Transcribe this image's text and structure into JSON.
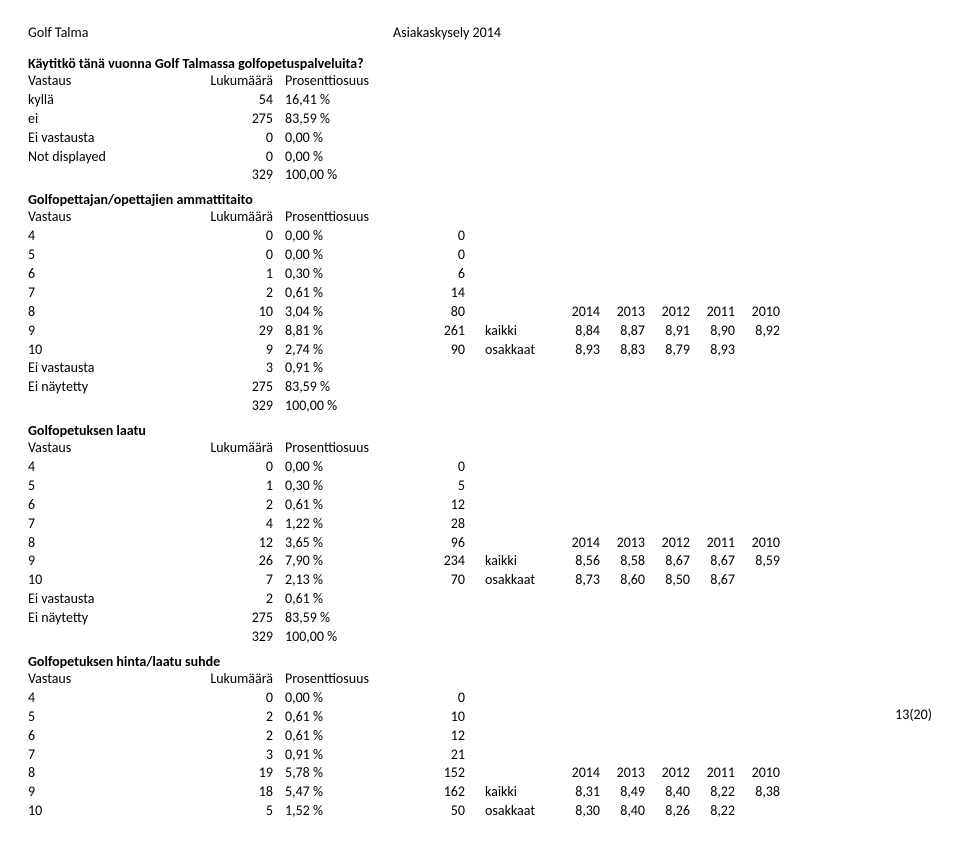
{
  "header": {
    "left_title": "Golf Talma",
    "right_title": "Asiakaskysely 2014"
  },
  "page_number": "13(20)",
  "columns": {
    "vastaus": "Vastaus",
    "lukumaara": "Lukumäärä",
    "prosentti": "Prosenttiosuus"
  },
  "years": [
    "2014",
    "2013",
    "2012",
    "2011",
    "2010"
  ],
  "labels": {
    "kaikki": "kaikki",
    "osakkaat": "osakkaat"
  },
  "q1": {
    "title": "Käytitkö tänä vuonna Golf Talmassa golfopetuspalveluita?",
    "rows": [
      {
        "l": "kyllä",
        "n": "54",
        "p": "16,41 %"
      },
      {
        "l": "ei",
        "n": "275",
        "p": "83,59 %"
      },
      {
        "l": "Ei vastausta",
        "n": "0",
        "p": "0,00 %"
      },
      {
        "l": "Not displayed",
        "n": "0",
        "p": "0,00 %"
      }
    ],
    "total": {
      "n": "329",
      "p": "100,00 %"
    }
  },
  "q2": {
    "title": "Golfopettajan/opettajien ammattitaito",
    "rows": [
      {
        "l": "4",
        "n": "0",
        "p": "0,00 %",
        "s": "0"
      },
      {
        "l": "5",
        "n": "0",
        "p": "0,00 %",
        "s": "0"
      },
      {
        "l": "6",
        "n": "1",
        "p": "0,30 %",
        "s": "6"
      },
      {
        "l": "7",
        "n": "2",
        "p": "0,61 %",
        "s": "14"
      },
      {
        "l": "8",
        "n": "10",
        "p": "3,04 %",
        "s": "80",
        "years_header": true
      },
      {
        "l": "9",
        "n": "29",
        "p": "8,81 %",
        "s": "261",
        "tag": "kaikki",
        "v": [
          "8,84",
          "8,87",
          "8,91",
          "8,90",
          "8,92"
        ]
      },
      {
        "l": "10",
        "n": "9",
        "p": "2,74 %",
        "s": "90",
        "tag": "osakkaat",
        "v": [
          "8,93",
          "8,83",
          "8,79",
          "8,93",
          ""
        ]
      },
      {
        "l": "Ei vastausta",
        "n": "3",
        "p": "0,91 %"
      },
      {
        "l": "Ei näytetty",
        "n": "275",
        "p": "83,59 %"
      }
    ],
    "total": {
      "n": "329",
      "p": "100,00 %"
    }
  },
  "q3": {
    "title": "Golfopetuksen laatu",
    "rows": [
      {
        "l": "4",
        "n": "0",
        "p": "0,00 %",
        "s": "0"
      },
      {
        "l": "5",
        "n": "1",
        "p": "0,30 %",
        "s": "5"
      },
      {
        "l": "6",
        "n": "2",
        "p": "0,61 %",
        "s": "12"
      },
      {
        "l": "7",
        "n": "4",
        "p": "1,22 %",
        "s": "28"
      },
      {
        "l": "8",
        "n": "12",
        "p": "3,65 %",
        "s": "96",
        "years_header": true
      },
      {
        "l": "9",
        "n": "26",
        "p": "7,90 %",
        "s": "234",
        "tag": "kaikki",
        "v": [
          "8,56",
          "8,58",
          "8,67",
          "8,67",
          "8,59"
        ]
      },
      {
        "l": "10",
        "n": "7",
        "p": "2,13 %",
        "s": "70",
        "tag": "osakkaat",
        "v": [
          "8,73",
          "8,60",
          "8,50",
          "8,67",
          ""
        ]
      },
      {
        "l": "Ei vastausta",
        "n": "2",
        "p": "0,61 %"
      },
      {
        "l": "Ei näytetty",
        "n": "275",
        "p": "83,59 %"
      }
    ],
    "total": {
      "n": "329",
      "p": "100,00 %"
    }
  },
  "q4": {
    "title": "Golfopetuksen hinta/laatu suhde",
    "rows": [
      {
        "l": "4",
        "n": "0",
        "p": "0,00 %",
        "s": "0"
      },
      {
        "l": "5",
        "n": "2",
        "p": "0,61 %",
        "s": "10"
      },
      {
        "l": "6",
        "n": "2",
        "p": "0,61 %",
        "s": "12"
      },
      {
        "l": "7",
        "n": "3",
        "p": "0,91 %",
        "s": "21"
      },
      {
        "l": "8",
        "n": "19",
        "p": "5,78 %",
        "s": "152",
        "years_header": true
      },
      {
        "l": "9",
        "n": "18",
        "p": "5,47 %",
        "s": "162",
        "tag": "kaikki",
        "v": [
          "8,31",
          "8,49",
          "8,40",
          "8,22",
          "8,38"
        ]
      },
      {
        "l": "10",
        "n": "5",
        "p": "1,52 %",
        "s": "50",
        "tag": "osakkaat",
        "v": [
          "8,30",
          "8,40",
          "8,26",
          "8,22",
          ""
        ]
      }
    ]
  }
}
